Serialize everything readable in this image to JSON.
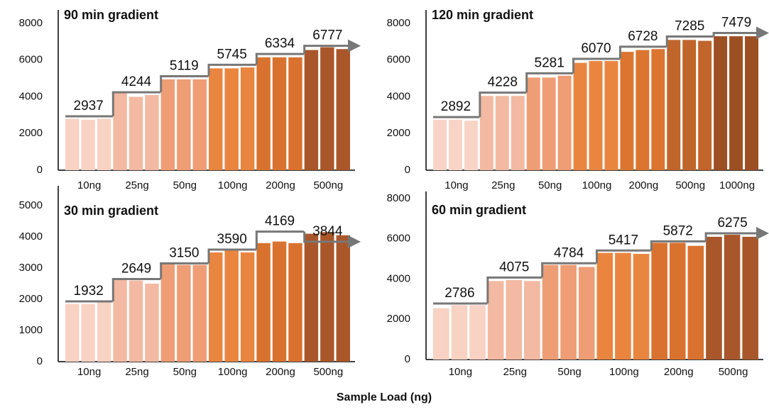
{
  "figure": {
    "xlabel": "Sample Load (ng)"
  },
  "chart_data": [
    {
      "type": "bar",
      "title": "90 min gradient",
      "categories": [
        "10ng",
        "25ng",
        "50ng",
        "100ng",
        "200ng",
        "500ng"
      ],
      "values": [
        [
          2800,
          2750,
          2800
        ],
        [
          4200,
          4000,
          4100
        ],
        [
          4950,
          4950,
          4950
        ],
        [
          5550,
          5550,
          5600
        ],
        [
          6150,
          6150,
          6150
        ],
        [
          6550,
          6700,
          6600
        ]
      ],
      "colors": [
        "#f8d2c3",
        "#f3b9a2",
        "#ef9d75",
        "#ea8540",
        "#d9722f",
        "#a9572a"
      ],
      "step_values": [
        2937,
        4244,
        5119,
        5745,
        6334,
        6777
      ],
      "step_color": "#777777",
      "ylim": [
        0,
        8000
      ],
      "yticks": [
        0,
        2000,
        4000,
        6000,
        8000
      ]
    },
    {
      "type": "bar",
      "title": "120 min gradient",
      "categories": [
        "10ng",
        "25ng",
        "50ng",
        "100ng",
        "200ng",
        "500ng",
        "1000ng"
      ],
      "values": [
        [
          2750,
          2750,
          2700
        ],
        [
          4050,
          4050,
          4050
        ],
        [
          5050,
          5050,
          5150
        ],
        [
          5850,
          5950,
          5950
        ],
        [
          6450,
          6550,
          6600
        ],
        [
          7100,
          7100,
          7050
        ],
        [
          7300,
          7300,
          7300
        ]
      ],
      "colors": [
        "#f8d4c6",
        "#f3b9a2",
        "#ef9d75",
        "#ea8540",
        "#dc7530",
        "#c0652b",
        "#9c4f23"
      ],
      "step_values": [
        2892,
        4228,
        5281,
        6070,
        6728,
        7285,
        7479
      ],
      "step_color": "#777777",
      "ylim": [
        0,
        8000
      ],
      "yticks": [
        0,
        2000,
        4000,
        6000,
        8000
      ]
    },
    {
      "type": "bar",
      "title": "30 min gradient",
      "categories": [
        "10ng",
        "25ng",
        "50ng",
        "100ng",
        "200ng",
        "500ng"
      ],
      "values": [
        [
          1850,
          1850,
          1950
        ],
        [
          2650,
          2600,
          2500
        ],
        [
          3150,
          3100,
          3100
        ],
        [
          3500,
          3600,
          3500
        ],
        [
          3800,
          3850,
          3800
        ],
        [
          4100,
          4150,
          4050
        ]
      ],
      "colors": [
        "#f8d2c3",
        "#f3b9a2",
        "#ef9d75",
        "#ea8540",
        "#d9722f",
        "#a9572a"
      ],
      "step_values": [
        1932,
        2649,
        3150,
        3590,
        4169,
        3844
      ],
      "step_color": "#777777",
      "ylim": [
        0,
        5000
      ],
      "yticks": [
        0,
        1000,
        2000,
        3000,
        4000,
        5000
      ]
    },
    {
      "type": "bar",
      "title": "60 min gradient",
      "categories": [
        "10ng",
        "25ng",
        "50ng",
        "100ng",
        "200ng",
        "500ng"
      ],
      "values": [
        [
          2550,
          2700,
          2700
        ],
        [
          3900,
          3950,
          3900
        ],
        [
          4700,
          4700,
          4600
        ],
        [
          5300,
          5300,
          5250
        ],
        [
          5800,
          5800,
          5650
        ],
        [
          6100,
          6200,
          6100
        ]
      ],
      "colors": [
        "#f8d2c3",
        "#f3b9a2",
        "#ef9d75",
        "#ea8540",
        "#d9722f",
        "#a9572a"
      ],
      "step_values": [
        2786,
        4075,
        4784,
        5417,
        5872,
        6275
      ],
      "step_color": "#777777",
      "ylim": [
        0,
        8000
      ],
      "yticks": [
        0,
        2000,
        4000,
        6000,
        8000
      ]
    }
  ]
}
